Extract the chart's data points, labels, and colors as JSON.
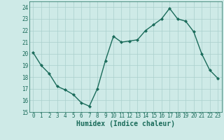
{
  "x": [
    0,
    1,
    2,
    3,
    4,
    5,
    6,
    7,
    8,
    9,
    10,
    11,
    12,
    13,
    14,
    15,
    16,
    17,
    18,
    19,
    20,
    21,
    22,
    23
  ],
  "y": [
    20.1,
    19.0,
    18.3,
    17.2,
    16.9,
    16.5,
    15.8,
    15.5,
    17.0,
    19.4,
    21.5,
    21.0,
    21.1,
    21.2,
    22.0,
    22.5,
    23.0,
    23.9,
    23.0,
    22.8,
    21.9,
    20.0,
    18.6,
    17.9
  ],
  "line_color": "#1a6b5a",
  "marker": "D",
  "marker_size": 2.0,
  "bg_color": "#ceeae7",
  "grid_color": "#aacfcc",
  "xlabel": "Humidex (Indice chaleur)",
  "ylim": [
    15,
    24.5
  ],
  "xlim": [
    -0.5,
    23.5
  ],
  "yticks": [
    15,
    16,
    17,
    18,
    19,
    20,
    21,
    22,
    23,
    24
  ],
  "xticks": [
    0,
    1,
    2,
    3,
    4,
    5,
    6,
    7,
    8,
    9,
    10,
    11,
    12,
    13,
    14,
    15,
    16,
    17,
    18,
    19,
    20,
    21,
    22,
    23
  ],
  "tick_fontsize": 5.5,
  "label_fontsize": 7,
  "linewidth": 1.0
}
